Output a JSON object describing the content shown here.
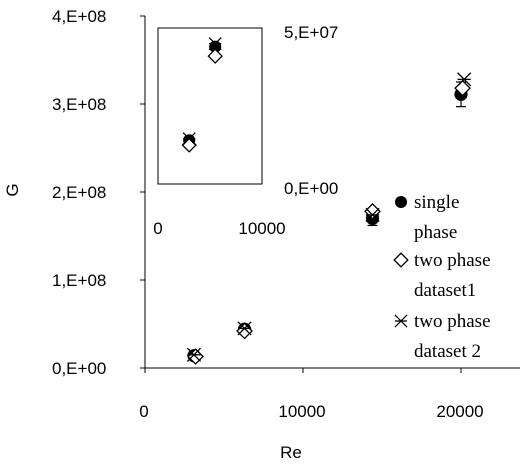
{
  "chart_data": [
    {
      "type": "scatter",
      "xlabel": "Re",
      "ylabel": "G",
      "xlim": [
        0,
        25000
      ],
      "ylim": [
        0,
        400000000
      ],
      "x_ticks": [
        "0",
        "10000",
        "20000"
      ],
      "y_ticks": [
        "0,E+00",
        "1,E+08",
        "2,E+08",
        "3,E+08",
        "4,E+08"
      ],
      "grid": false,
      "legend_position": "right",
      "series": [
        {
          "name": "single phase",
          "marker": "filled-circle",
          "points": [
            {
              "x": 3100,
              "y": 14000000
            },
            {
              "x": 6300,
              "y": 44000000
            },
            {
              "x": 14400,
              "y": 170000000,
              "err": 8000000
            },
            {
              "x": 20000,
              "y": 311000000,
              "err": 14000000
            }
          ]
        },
        {
          "name": "two phase dataset1",
          "marker": "open-diamond",
          "points": [
            {
              "x": 3200,
              "y": 13000000
            },
            {
              "x": 6300,
              "y": 42000000
            },
            {
              "x": 14400,
              "y": 178000000
            },
            {
              "x": 20100,
              "y": 318000000
            }
          ]
        },
        {
          "name": "two phase dataset 2",
          "marker": "asterisk",
          "points": [
            {
              "x": 3100,
              "y": 15000000
            },
            {
              "x": 6300,
              "y": 45000000
            },
            {
              "x": 14400,
              "y": 174000000
            },
            {
              "x": 20200,
              "y": 328000000
            }
          ]
        }
      ]
    },
    {
      "type": "scatter",
      "position": "inset",
      "xlim": [
        0,
        10000
      ],
      "ylim": [
        0,
        50000000
      ],
      "x_ticks": [
        "0",
        "10000"
      ],
      "y_ticks": [
        "0,E+00",
        "5,E+07"
      ],
      "series": [
        {
          "name": "single phase",
          "marker": "filled-circle",
          "points": [
            {
              "x": 3000,
              "y": 14000000
            },
            {
              "x": 5500,
              "y": 44000000
            }
          ]
        },
        {
          "name": "two phase dataset1",
          "marker": "open-diamond",
          "points": [
            {
              "x": 3000,
              "y": 12500000
            },
            {
              "x": 5500,
              "y": 41000000
            }
          ]
        },
        {
          "name": "two phase dataset 2",
          "marker": "asterisk",
          "points": [
            {
              "x": 3000,
              "y": 14500000
            },
            {
              "x": 5500,
              "y": 45000000
            }
          ]
        }
      ]
    }
  ],
  "legend": [
    {
      "lines": [
        "single",
        "phase"
      ]
    },
    {
      "lines": [
        "two phase",
        "dataset1"
      ]
    },
    {
      "lines": [
        "two phase",
        "dataset 2"
      ]
    }
  ]
}
